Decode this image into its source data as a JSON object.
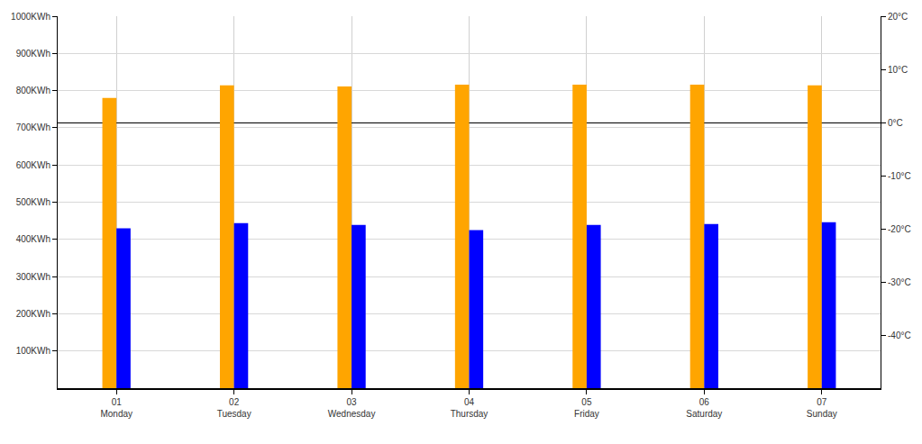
{
  "chart_data": {
    "type": "bar",
    "categories": [
      "01\nMonday",
      "02\nTuesday",
      "03\nWednesday",
      "04\nThursday",
      "05\nFriday",
      "06\nSaturday",
      "07\nSunday"
    ],
    "series": [
      {
        "color": "#FFA500",
        "values": [
          780,
          814,
          811,
          816,
          816,
          816,
          814
        ]
      },
      {
        "color": "#0000FF",
        "values": [
          430,
          444,
          439,
          425,
          439,
          441,
          446
        ]
      }
    ],
    "ylim": [
      0,
      1000
    ],
    "yticks": [
      {
        "value": 100,
        "label": "100KWh"
      },
      {
        "value": 200,
        "label": "200KWh"
      },
      {
        "value": 300,
        "label": "300KWh"
      },
      {
        "value": 400,
        "label": "400KWh"
      },
      {
        "value": 500,
        "label": "500KWh"
      },
      {
        "value": 600,
        "label": "600KWh"
      },
      {
        "value": 700,
        "label": "700KWh"
      },
      {
        "value": 800,
        "label": "800KWh"
      },
      {
        "value": 900,
        "label": "900KWh"
      },
      {
        "value": 1000,
        "label": "1000KWh"
      }
    ],
    "y2lim": [
      -50,
      20
    ],
    "y2ticks": [
      {
        "value": -40,
        "label": "-40°C"
      },
      {
        "value": -30,
        "label": "-30°C"
      },
      {
        "value": -20,
        "label": "-20°C"
      },
      {
        "value": -10,
        "label": "-10°C"
      },
      {
        "value": 0,
        "label": "0°C"
      },
      {
        "value": 10,
        "label": "10°C"
      },
      {
        "value": 20,
        "label": "20°C"
      }
    ],
    "grid": true
  }
}
